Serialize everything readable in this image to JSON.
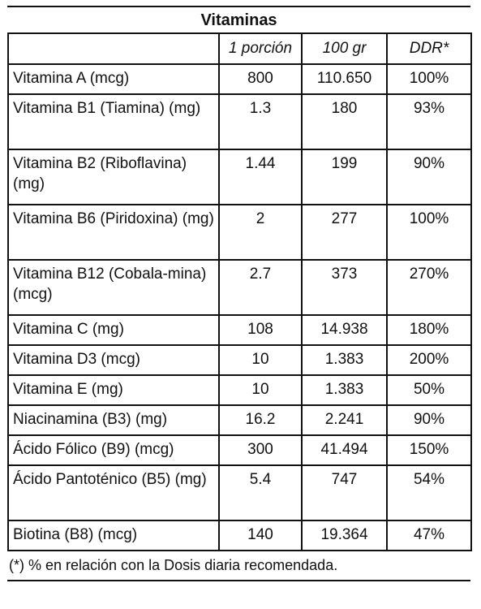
{
  "title": "Vitaminas",
  "headers": [
    "",
    "1 porción",
    "100 gr",
    "DDR*"
  ],
  "rows": [
    {
      "name": "Vitamina A (mcg)",
      "portion": "800",
      "per100": "110.650",
      "ddr": "100%",
      "lines": 1
    },
    {
      "name": "Vitamina B1 (Tiamina) (mg)",
      "portion": "1.3",
      "per100": "180",
      "ddr": "93%",
      "lines": 2
    },
    {
      "name": "Vitamina B2 (Riboflavina) (mg)",
      "portion": "1.44",
      "per100": "199",
      "ddr": "90%",
      "lines": 2
    },
    {
      "name": "Vitamina B6 (Piridoxina) (mg)",
      "portion": "2",
      "per100": "277",
      "ddr": "100%",
      "lines": 2
    },
    {
      "name": "Vitamina B12 (Cobala-mina) (mcg)",
      "portion": "2.7",
      "per100": "373",
      "ddr": "270%",
      "lines": 2
    },
    {
      "name": "Vitamina C (mg)",
      "portion": "108",
      "per100": "14.938",
      "ddr": "180%",
      "lines": 1
    },
    {
      "name": "Vitamina D3 (mcg)",
      "portion": "10",
      "per100": "1.383",
      "ddr": "200%",
      "lines": 1
    },
    {
      "name": "Vitamina E (mg)",
      "portion": "10",
      "per100": "1.383",
      "ddr": "50%",
      "lines": 1
    },
    {
      "name": "Niacinamina (B3) (mg)",
      "portion": "16.2",
      "per100": "2.241",
      "ddr": "90%",
      "lines": 1
    },
    {
      "name": "Ácido Fólico (B9) (mcg)",
      "portion": "300",
      "per100": "41.494",
      "ddr": "150%",
      "lines": 1
    },
    {
      "name": "Ácido Pantoténico (B5) (mg)",
      "portion": "5.4",
      "per100": "747",
      "ddr": "54%",
      "lines": 2
    },
    {
      "name": "Biotina (B8) (mcg)",
      "portion": "140",
      "per100": "19.364",
      "ddr": "47%",
      "lines": 1
    }
  ],
  "footnote": "(*) % en relación con la Dosis diaria recomendada."
}
